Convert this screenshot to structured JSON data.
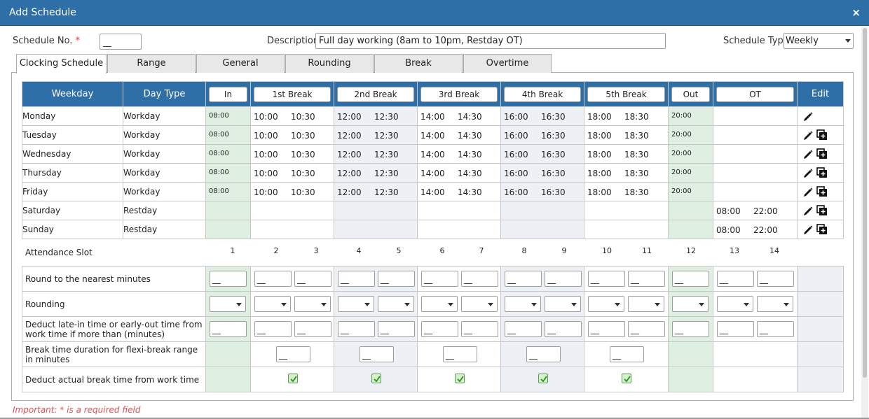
{
  "window": {
    "title": "Add Schedule",
    "close_glyph": "×"
  },
  "form": {
    "schedule_no_label": "Schedule No.",
    "required_marker": "*",
    "schedule_no_value": "__",
    "description_label": "Description",
    "description_value": "Full day working (8am to 10pm, Restday OT)",
    "schedule_type_label": "Schedule Type",
    "schedule_type_value": "Weekly"
  },
  "tabs": [
    "Clocking Schedule",
    "Range",
    "General",
    "Rounding",
    "Break",
    "Overtime"
  ],
  "table": {
    "headers": {
      "weekday": "Weekday",
      "daytype": "Day Type",
      "in": "In",
      "b1": "1st Break",
      "b2": "2nd Break",
      "b3": "3rd Break",
      "b4": "4th Break",
      "b5": "5th Break",
      "out": "Out",
      "ot": "OT",
      "edit": "Edit"
    },
    "rows": [
      {
        "day": "Monday",
        "type": "Workday",
        "in": "08:00",
        "b1s": "10:00",
        "b1e": "10:30",
        "b2s": "12:00",
        "b2e": "12:30",
        "b3s": "14:00",
        "b3e": "14:30",
        "b4s": "16:00",
        "b4e": "16:30",
        "b5s": "18:00",
        "b5e": "18:30",
        "out": "20:00",
        "ots": "",
        "ote": ""
      },
      {
        "day": "Tuesday",
        "type": "Workday",
        "in": "08:00",
        "b1s": "10:00",
        "b1e": "10:30",
        "b2s": "12:00",
        "b2e": "12:30",
        "b3s": "14:00",
        "b3e": "14:30",
        "b4s": "16:00",
        "b4e": "16:30",
        "b5s": "18:00",
        "b5e": "18:30",
        "out": "20:00",
        "ots": "",
        "ote": ""
      },
      {
        "day": "Wednesday",
        "type": "Workday",
        "in": "08:00",
        "b1s": "10:00",
        "b1e": "10:30",
        "b2s": "12:00",
        "b2e": "12:30",
        "b3s": "14:00",
        "b3e": "14:30",
        "b4s": "16:00",
        "b4e": "16:30",
        "b5s": "18:00",
        "b5e": "18:30",
        "out": "20:00",
        "ots": "",
        "ote": ""
      },
      {
        "day": "Thursday",
        "type": "Workday",
        "in": "08:00",
        "b1s": "10:00",
        "b1e": "10:30",
        "b2s": "12:00",
        "b2e": "12:30",
        "b3s": "14:00",
        "b3e": "14:30",
        "b4s": "16:00",
        "b4e": "16:30",
        "b5s": "18:00",
        "b5e": "18:30",
        "out": "20:00",
        "ots": "",
        "ote": ""
      },
      {
        "day": "Friday",
        "type": "Workday",
        "in": "08:00",
        "b1s": "10:00",
        "b1e": "10:30",
        "b2s": "12:00",
        "b2e": "12:30",
        "b3s": "14:00",
        "b3e": "14:30",
        "b4s": "16:00",
        "b4e": "16:30",
        "b5s": "18:00",
        "b5e": "18:30",
        "out": "20:00",
        "ots": "",
        "ote": ""
      },
      {
        "day": "Saturday",
        "type": "Restday",
        "in": "",
        "b1s": "",
        "b1e": "",
        "b2s": "",
        "b2e": "",
        "b3s": "",
        "b3e": "",
        "b4s": "",
        "b4e": "",
        "b5s": "",
        "b5e": "",
        "out": "",
        "ots": "08:00",
        "ote": "22:00"
      },
      {
        "day": "Sunday",
        "type": "Restday",
        "in": "",
        "b1s": "",
        "b1e": "",
        "b2s": "",
        "b2e": "",
        "b3s": "",
        "b3e": "",
        "b4s": "",
        "b4e": "",
        "b5s": "",
        "b5e": "",
        "out": "",
        "ots": "08:00",
        "ote": "22:00"
      }
    ],
    "edit_icons": {
      "edit": "pencil-icon",
      "copy": "copy-add-icon"
    }
  },
  "attendance": {
    "label": "Attendance Slot",
    "slots": [
      "1",
      "2",
      "3",
      "4",
      "5",
      "6",
      "7",
      "8",
      "9",
      "10",
      "11",
      "12",
      "13",
      "14"
    ]
  },
  "settings": {
    "round_label": "Round to the nearest minutes",
    "rounding_label": "Rounding",
    "deduct_late_label": "Deduct late-in time or early-out time from work time if more than (minutes)",
    "break_duration_label": "Break time duration for flexi-break range in minutes",
    "deduct_break_label": "Deduct actual break time from work time",
    "input_placeholder": "__"
  },
  "footer": {
    "important": "Important: * is a required field"
  },
  "colors": {
    "title_bar": "#2f6fa8",
    "in_out_col": "#dff0e2",
    "alt_col": "#edf1f5",
    "required": "#d9363e"
  }
}
